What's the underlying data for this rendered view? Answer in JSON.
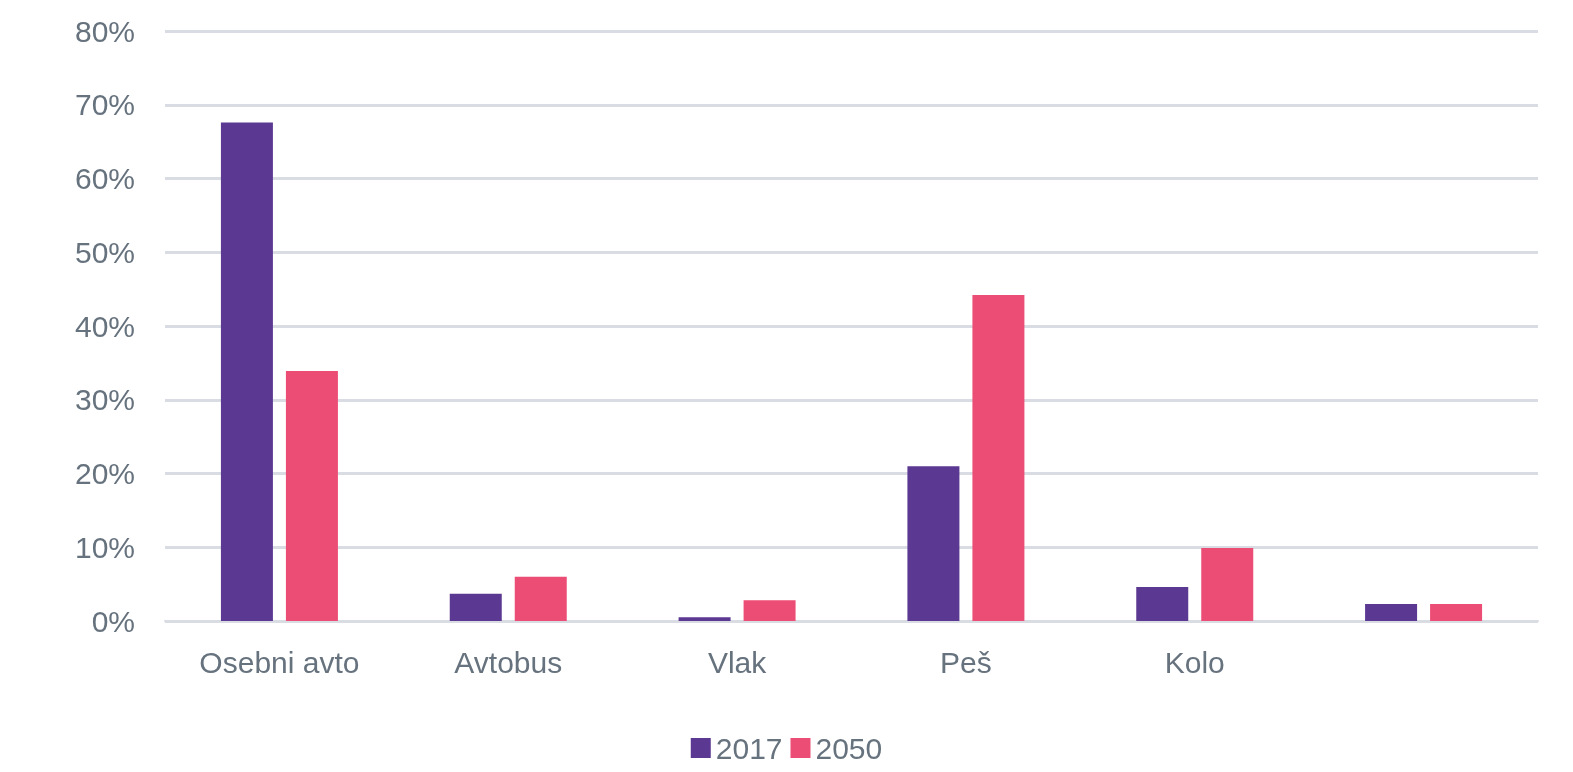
{
  "chart_data": {
    "type": "bar",
    "categories": [
      "Osebni avto",
      "Avtobus",
      "Vlak",
      "Peš",
      "Kolo",
      null
    ],
    "series": [
      {
        "name": "2017",
        "color": "#5b3891",
        "values": [
          67.6,
          3.7,
          0.5,
          21.0,
          4.6,
          2.3
        ]
      },
      {
        "name": "2050",
        "color": "#ec4d75",
        "values": [
          33.9,
          6.0,
          2.8,
          44.2,
          9.9,
          2.3
        ]
      }
    ],
    "ylim": [
      0,
      80
    ],
    "yticks": [
      {
        "value": 0,
        "label": "0%"
      },
      {
        "value": 10,
        "label": "10%"
      },
      {
        "value": 20,
        "label": "20%"
      },
      {
        "value": 30,
        "label": "30%"
      },
      {
        "value": 40,
        "label": "40%"
      },
      {
        "value": 50,
        "label": "50%"
      },
      {
        "value": 60,
        "label": "60%"
      },
      {
        "value": 70,
        "label": "70%"
      },
      {
        "value": 80,
        "label": "80%"
      }
    ],
    "grid": "y",
    "legend": "bottom"
  }
}
